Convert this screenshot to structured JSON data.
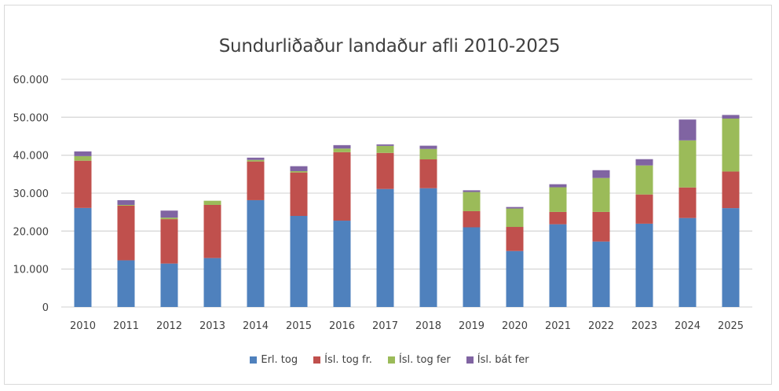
{
  "chart_data": {
    "type": "bar",
    "stacked": true,
    "title": "Sundurliðaður landaður afli 2010-2025",
    "xlabel": "",
    "ylabel": "",
    "ylim": [
      0,
      60000
    ],
    "yticks": [
      "0",
      "10.000",
      "20.000",
      "30.000",
      "40.000",
      "50.000",
      "60.000"
    ],
    "grid": true,
    "legend_position": "bottom",
    "categories": [
      "2010",
      "2011",
      "2012",
      "2013",
      "2014",
      "2015",
      "2016",
      "2017",
      "2018",
      "2019",
      "2020",
      "2021",
      "2022",
      "2023",
      "2024",
      "2025"
    ],
    "series": [
      {
        "name": "Erl. tog",
        "color": "#4f81bd",
        "values": [
          26100,
          12300,
          11450,
          12900,
          28150,
          24000,
          22750,
          31100,
          31300,
          21000,
          14750,
          21800,
          17250,
          21950,
          23450,
          26050
        ]
      },
      {
        "name": "Ísl. tog fr.",
        "color": "#c0504d",
        "values": [
          12450,
          14400,
          11700,
          14000,
          10200,
          11450,
          18050,
          9500,
          7600,
          4250,
          6350,
          3250,
          7800,
          7700,
          8050,
          9650
        ]
      },
      {
        "name": "Ísl. tog fer",
        "color": "#9bbb59",
        "values": [
          1200,
          200,
          400,
          1100,
          400,
          350,
          950,
          1850,
          2750,
          5050,
          4850,
          6500,
          8950,
          7650,
          12400,
          13950
        ]
      },
      {
        "name": "Ísl. bát fer",
        "color": "#8064a2",
        "values": [
          1250,
          1250,
          1850,
          0,
          600,
          1300,
          900,
          400,
          850,
          450,
          400,
          800,
          2050,
          1650,
          5500,
          950
        ]
      }
    ]
  }
}
